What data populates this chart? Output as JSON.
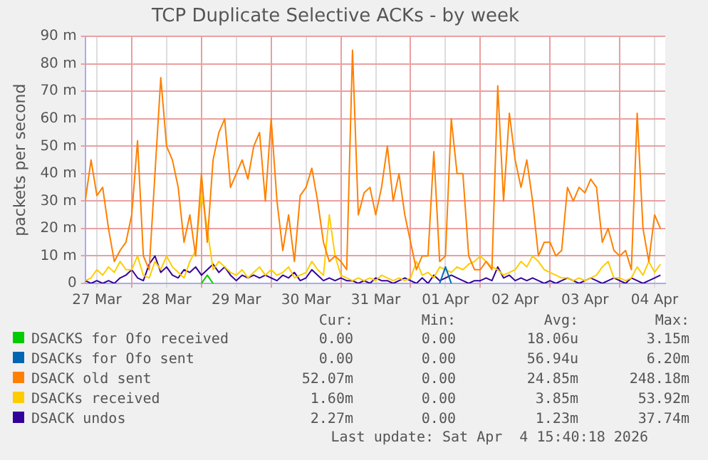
{
  "chart_data": {
    "type": "line",
    "title": "TCP Duplicate Selective ACKs - by week",
    "ylabel": "packets per second",
    "x": [
      "2026-03-27T08:00",
      "2026-03-27T10:00",
      "2026-03-27T12:00",
      "2026-03-27T14:00",
      "2026-03-27T16:00",
      "2026-03-27T18:00",
      "2026-03-27T20:00",
      "2026-03-27T22:00",
      "2026-03-28T00:00",
      "2026-03-28T02:00",
      "2026-03-28T04:00",
      "2026-03-28T06:00",
      "2026-03-28T08:00",
      "2026-03-28T10:00",
      "2026-03-28T12:00",
      "2026-03-28T14:00",
      "2026-03-28T16:00",
      "2026-03-28T18:00",
      "2026-03-28T20:00",
      "2026-03-28T22:00",
      "2026-03-29T00:00",
      "2026-03-29T02:00",
      "2026-03-29T04:00",
      "2026-03-29T06:00",
      "2026-03-29T08:00",
      "2026-03-29T10:00",
      "2026-03-29T12:00",
      "2026-03-29T14:00",
      "2026-03-29T16:00",
      "2026-03-29T18:00",
      "2026-03-29T20:00",
      "2026-03-29T22:00",
      "2026-03-30T00:00",
      "2026-03-30T02:00",
      "2026-03-30T04:00",
      "2026-03-30T06:00",
      "2026-03-30T08:00",
      "2026-03-30T10:00",
      "2026-03-30T12:00",
      "2026-03-30T14:00",
      "2026-03-30T16:00",
      "2026-03-30T18:00",
      "2026-03-30T20:00",
      "2026-03-30T22:00",
      "2026-03-31T00:00",
      "2026-03-31T02:00",
      "2026-03-31T04:00",
      "2026-03-31T06:00",
      "2026-03-31T08:00",
      "2026-03-31T10:00",
      "2026-03-31T12:00",
      "2026-03-31T14:00",
      "2026-03-31T16:00",
      "2026-03-31T18:00",
      "2026-03-31T20:00",
      "2026-03-31T22:00",
      "2026-04-01T00:00",
      "2026-04-01T02:00",
      "2026-04-01T04:00",
      "2026-04-01T06:00",
      "2026-04-01T08:00",
      "2026-04-01T10:00",
      "2026-04-01T12:00",
      "2026-04-01T14:00",
      "2026-04-01T16:00",
      "2026-04-01T18:00",
      "2026-04-01T20:00",
      "2026-04-01T22:00",
      "2026-04-02T00:00",
      "2026-04-02T02:00",
      "2026-04-02T04:00",
      "2026-04-02T06:00",
      "2026-04-02T08:00",
      "2026-04-02T10:00",
      "2026-04-02T12:00",
      "2026-04-02T14:00",
      "2026-04-02T16:00",
      "2026-04-02T18:00",
      "2026-04-02T20:00",
      "2026-04-02T22:00",
      "2026-04-03T00:00",
      "2026-04-03T02:00",
      "2026-04-03T04:00",
      "2026-04-03T06:00",
      "2026-04-03T08:00",
      "2026-04-03T10:00",
      "2026-04-03T12:00",
      "2026-04-03T14:00",
      "2026-04-03T16:00",
      "2026-04-03T18:00",
      "2026-04-03T20:00",
      "2026-04-03T22:00",
      "2026-04-04T00:00",
      "2026-04-04T02:00",
      "2026-04-04T04:00",
      "2026-04-04T06:00",
      "2026-04-04T08:00",
      "2026-04-04T10:00",
      "2026-04-04T12:00",
      "2026-04-04T14:00"
    ],
    "series": [
      {
        "name": "DSACKS for Ofo received",
        "color": "#00cc00",
        "x": [
          "2026-03-29T00:00",
          "2026-03-29T02:00",
          "2026-03-29T04:00"
        ],
        "values": [
          0,
          3,
          0
        ]
      },
      {
        "name": "DSACKs for Ofo sent",
        "color": "#0066b3",
        "x": [
          "2026-04-01T10:00",
          "2026-04-01T12:00",
          "2026-04-01T14:00"
        ],
        "values": [
          0,
          6,
          0
        ]
      },
      {
        "name": "DSACK old sent",
        "color": "#ff8000",
        "values": [
          30,
          45,
          32,
          35,
          20,
          8,
          12,
          15,
          25,
          52,
          10,
          5,
          40,
          75,
          50,
          45,
          35,
          15,
          25,
          10,
          40,
          15,
          45,
          55,
          60,
          35,
          40,
          45,
          38,
          50,
          55,
          30,
          60,
          30,
          12,
          25,
          8,
          32,
          35,
          42,
          30,
          15,
          8,
          10,
          8,
          5,
          85,
          25,
          33,
          35,
          25,
          35,
          50,
          30,
          40,
          25,
          15,
          5,
          10,
          10,
          48,
          8,
          10,
          60,
          40,
          40,
          10,
          5,
          5,
          8,
          5,
          72,
          30,
          62,
          45,
          35,
          45,
          30,
          10,
          15,
          15,
          10,
          12,
          35,
          30,
          35,
          33,
          38,
          35,
          15,
          20,
          12,
          10,
          12,
          5,
          62,
          20,
          8,
          25,
          20
        ]
      },
      {
        "name": "DSACKs received",
        "color": "#ffcc00",
        "values": [
          1,
          2,
          5,
          3,
          6,
          4,
          8,
          5,
          5,
          10,
          3,
          2,
          8,
          5,
          10,
          6,
          4,
          2,
          8,
          12,
          33,
          20,
          5,
          8,
          6,
          4,
          3,
          5,
          2,
          4,
          6,
          3,
          5,
          3,
          4,
          6,
          2,
          3,
          4,
          8,
          5,
          3,
          25,
          10,
          3,
          2,
          1,
          2,
          1,
          2,
          1,
          3,
          2,
          1,
          2,
          1,
          2,
          8,
          3,
          4,
          2,
          6,
          5,
          4,
          6,
          5,
          7,
          8,
          10,
          8,
          6,
          5,
          3,
          4,
          5,
          8,
          6,
          10,
          8,
          5,
          4,
          3,
          2,
          2,
          1,
          2,
          1,
          2,
          3,
          6,
          8,
          2,
          2,
          1,
          2,
          6,
          3,
          8,
          4,
          7
        ]
      },
      {
        "name": "DSACK undos",
        "color": "#330099",
        "values": [
          1,
          0,
          1,
          0,
          1,
          0,
          2,
          3,
          5,
          2,
          1,
          7,
          10,
          4,
          6,
          3,
          2,
          5,
          4,
          6,
          3,
          5,
          7,
          4,
          6,
          3,
          1,
          3,
          2,
          3,
          2,
          3,
          2,
          1,
          3,
          2,
          4,
          1,
          2,
          5,
          3,
          1,
          2,
          1,
          2,
          1,
          1,
          0,
          1,
          0,
          2,
          1,
          1,
          0,
          1,
          2,
          1,
          0,
          2,
          0,
          3,
          1,
          2,
          3,
          2,
          1,
          0,
          1,
          1,
          2,
          1,
          6,
          2,
          3,
          1,
          2,
          1,
          2,
          1,
          0,
          1,
          0,
          1,
          2,
          1,
          0,
          1,
          2,
          1,
          0,
          1,
          2,
          1,
          0,
          2,
          1,
          0,
          1,
          2,
          3
        ]
      }
    ],
    "xlim": [
      "2026-03-27T08:00",
      "2026-04-04T15:40"
    ],
    "xticks": [
      {
        "value": "2026-03-27T12:00",
        "label": "27 Mar"
      },
      {
        "value": "2026-03-28T00:00",
        "label": null
      },
      {
        "value": "2026-03-28T12:00",
        "label": "28 Mar"
      },
      {
        "value": "2026-03-29T00:00",
        "label": null
      },
      {
        "value": "2026-03-29T12:00",
        "label": "29 Mar"
      },
      {
        "value": "2026-03-30T00:00",
        "label": null
      },
      {
        "value": "2026-03-30T12:00",
        "label": "30 Mar"
      },
      {
        "value": "2026-03-31T00:00",
        "label": null
      },
      {
        "value": "2026-03-31T12:00",
        "label": "31 Mar"
      },
      {
        "value": "2026-04-01T00:00",
        "label": null
      },
      {
        "value": "2026-04-01T12:00",
        "label": "01 Apr"
      },
      {
        "value": "2026-04-02T00:00",
        "label": null
      },
      {
        "value": "2026-04-02T12:00",
        "label": "02 Apr"
      },
      {
        "value": "2026-04-03T00:00",
        "label": null
      },
      {
        "value": "2026-04-03T12:00",
        "label": "03 Apr"
      },
      {
        "value": "2026-04-04T00:00",
        "label": null
      },
      {
        "value": "2026-04-04T12:00",
        "label": "04 Apr"
      }
    ],
    "ylim": [
      0,
      90
    ],
    "yticks": [
      0,
      {
        "value": 10,
        "label": "10 m"
      },
      {
        "value": 20,
        "label": "20 m"
      },
      {
        "value": 30,
        "label": "30 m"
      },
      {
        "value": 40,
        "label": "40 m"
      },
      {
        "value": 50,
        "label": "50 m"
      },
      {
        "value": 60,
        "label": "60 m"
      },
      {
        "value": 70,
        "label": "70 m"
      },
      {
        "value": 80,
        "label": "80 m"
      },
      {
        "value": 90,
        "label": "90 m"
      }
    ],
    "grid": true,
    "legend": "bottom",
    "marker": "none",
    "line_style": "solid",
    "annotations": [
      "Cur:",
      "Min:",
      "Avg:",
      "Max:",
      "0.00",
      "0.00",
      "18.06u",
      "3.15m",
      "0.00",
      "0.00",
      "56.94u",
      "6.20m",
      "52.07m",
      "0.00",
      "24.85m",
      "248.18m",
      "1.60m",
      "0.00",
      "3.85m",
      "53.92m",
      "2.27m",
      "0.00",
      "1.23m",
      "37.74m",
      "Last update: Sat Apr  4 15:40:18 2026"
    ]
  }
}
